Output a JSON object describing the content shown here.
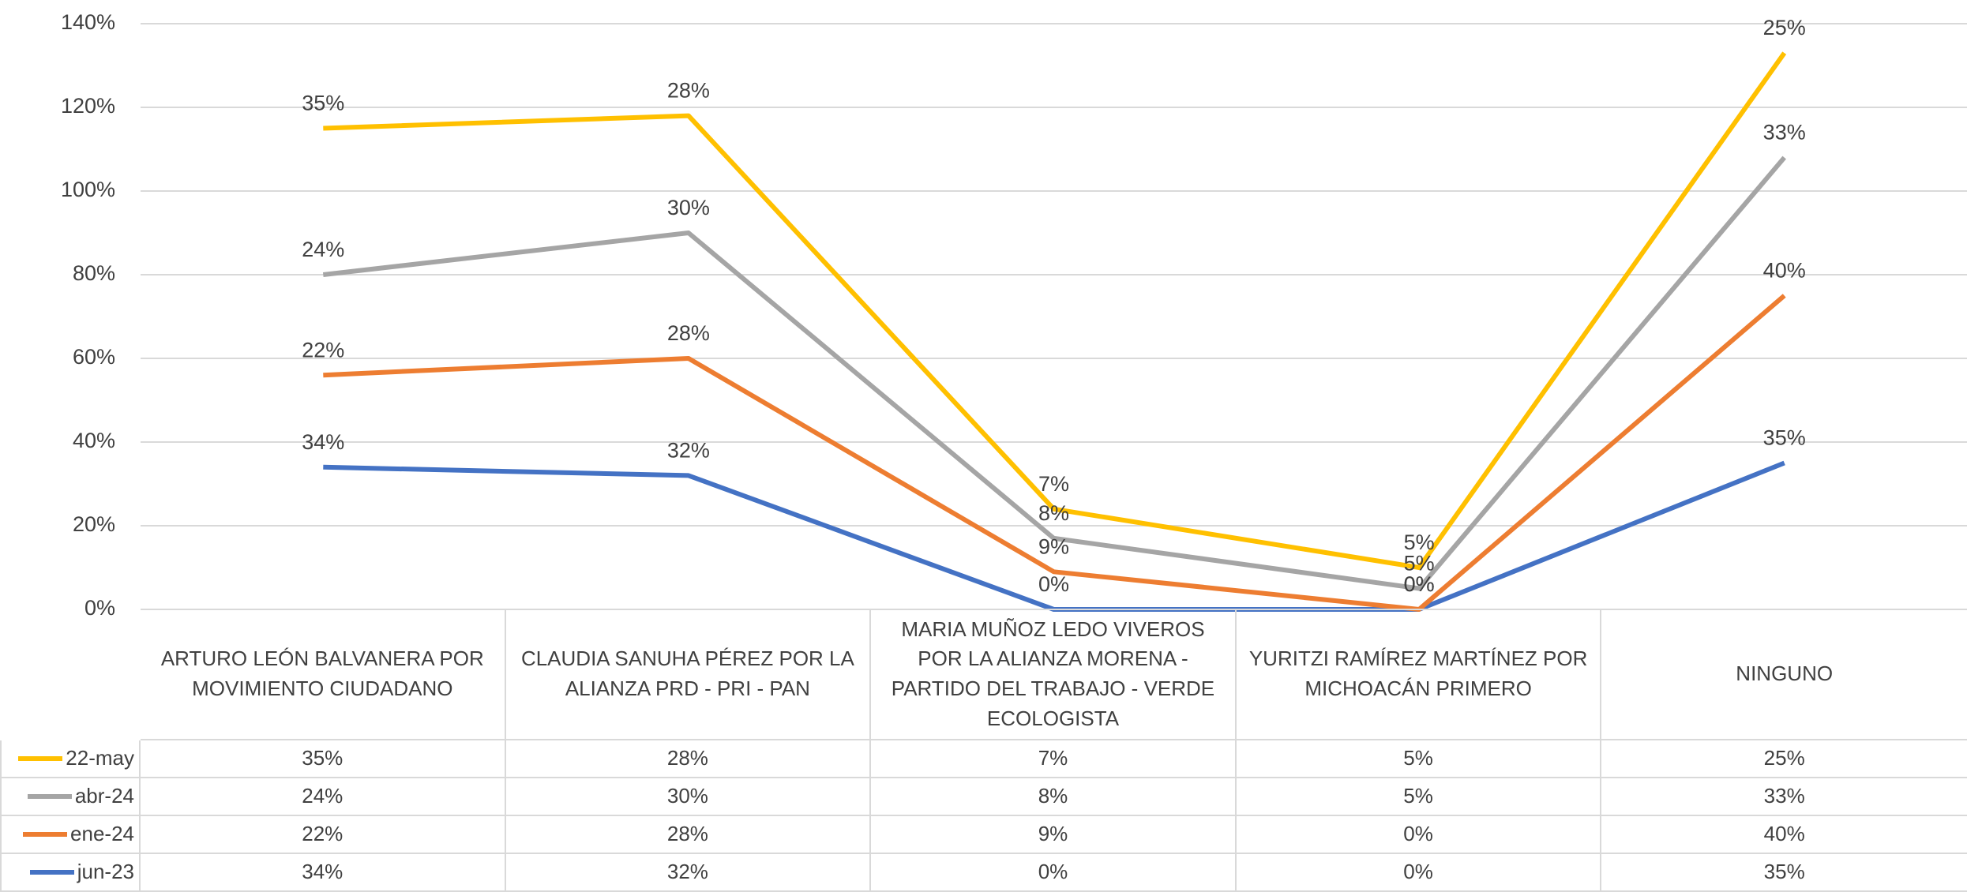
{
  "chart_data": {
    "type": "line",
    "stacked": true,
    "grid": true,
    "categories": [
      "ARTURO LEÓN BALVANERA POR MOVIMIENTO CIUDADANO",
      "CLAUDIA SANUHA PÉREZ POR LA ALIANZA PRD - PRI - PAN",
      "MARIA MUÑOZ LEDO VIVEROS POR LA ALIANZA MORENA - PARTIDO DEL TRABAJO - VERDE ECOLOGISTA",
      "YURITZI RAMÍREZ MARTÍNEZ POR MICHOACÁN PRIMERO",
      "NINGUNO"
    ],
    "series": [
      {
        "name": "22-may",
        "color": "#ffc000",
        "values": [
          35,
          28,
          7,
          5,
          25
        ],
        "value_labels": [
          "35%",
          "28%",
          "7%",
          "5%",
          "25%"
        ]
      },
      {
        "name": "abr-24",
        "color": "#a5a5a5",
        "values": [
          24,
          30,
          8,
          5,
          33
        ],
        "value_labels": [
          "24%",
          "30%",
          "8%",
          "5%",
          "33%"
        ]
      },
      {
        "name": "ene-24",
        "color": "#ed7d31",
        "values": [
          22,
          28,
          9,
          0,
          40
        ],
        "value_labels": [
          "22%",
          "28%",
          "9%",
          "0%",
          "40%"
        ]
      },
      {
        "name": "jun-23",
        "color": "#4472c4",
        "values": [
          34,
          32,
          0,
          0,
          35
        ],
        "value_labels": [
          "34%",
          "32%",
          "0%",
          "0%",
          "35%"
        ]
      }
    ],
    "ylim": [
      0,
      140
    ],
    "yticks": [
      {
        "value": 0,
        "label": "0%"
      },
      {
        "value": 20,
        "label": "20%"
      },
      {
        "value": 40,
        "label": "40%"
      },
      {
        "value": 60,
        "label": "60%"
      },
      {
        "value": 80,
        "label": "80%"
      },
      {
        "value": 100,
        "label": "100%"
      },
      {
        "value": 120,
        "label": "120%"
      },
      {
        "value": 140,
        "label": "140%"
      }
    ]
  }
}
